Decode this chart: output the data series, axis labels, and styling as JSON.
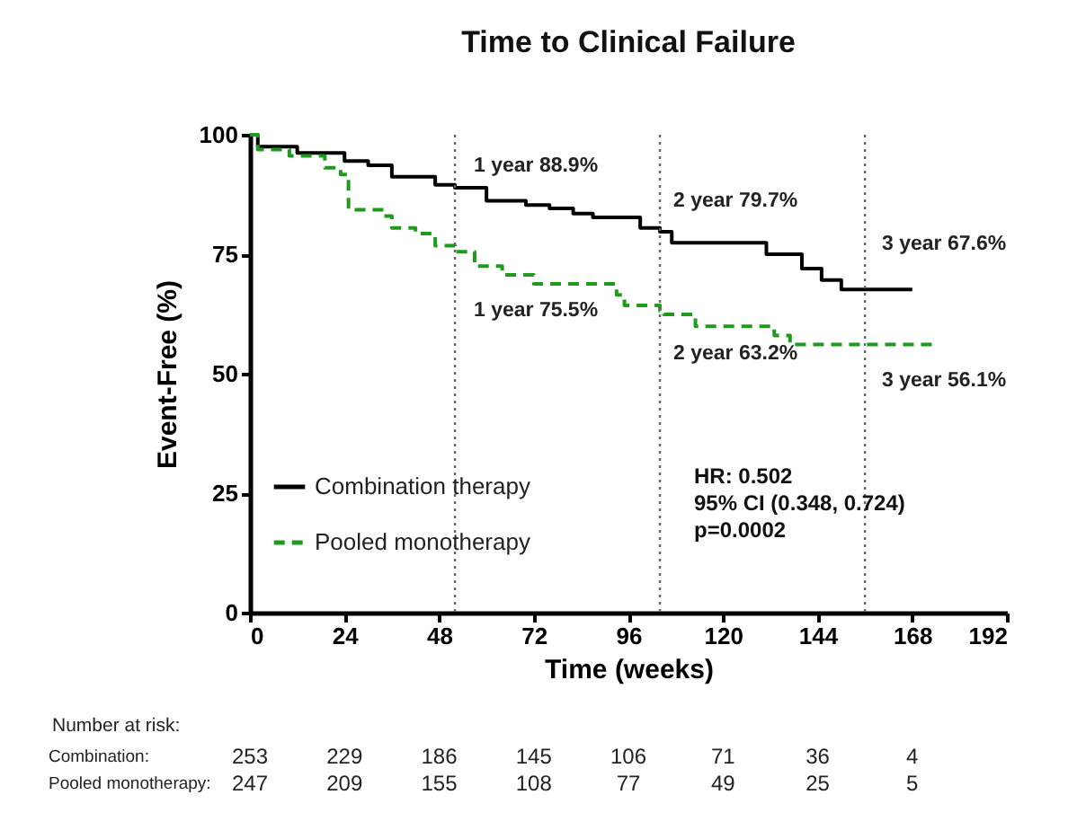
{
  "chart_data": {
    "type": "step",
    "title": "Time to Clinical Failure",
    "xlabel": "Time (weeks)",
    "ylabel": "Event-Free (%)",
    "xlim": [
      0,
      192
    ],
    "xticks": [
      0,
      24,
      48,
      72,
      96,
      120,
      144,
      168,
      192
    ],
    "ylim": [
      0,
      100
    ],
    "yticks": [
      0,
      25,
      50,
      75,
      100
    ],
    "grid": false,
    "legend": "bottom left",
    "marker": "none",
    "series": [
      {
        "name": "Combination therapy",
        "color": "#000000",
        "line_style": "solid",
        "x": [
          0,
          2,
          12,
          24,
          30,
          36,
          47,
          52,
          60,
          70,
          76,
          82,
          87,
          99,
          104,
          107,
          131,
          140,
          145,
          150,
          168
        ],
        "values": [
          100,
          97.5,
          96.2,
          94.5,
          93.6,
          91.2,
          89.5,
          88.9,
          86.2,
          85.3,
          84.6,
          83.5,
          82.7,
          80.5,
          79.7,
          77.4,
          75,
          72,
          69.6,
          67.6,
          67.6
        ]
      },
      {
        "name": "Pooled monotherapy",
        "color": "#1f9a1f",
        "line_style": "dashed",
        "x": [
          0,
          2,
          10,
          19,
          23,
          25,
          34,
          36,
          42,
          47,
          52,
          57,
          64,
          72,
          93,
          95,
          104,
          105,
          113,
          133,
          137,
          174
        ],
        "values": [
          100,
          96.9,
          95.6,
          93.1,
          91.7,
          84.3,
          83,
          80.5,
          79.3,
          76.8,
          75.5,
          72.5,
          70.7,
          68.8,
          66.5,
          64.3,
          63.2,
          62.4,
          59.9,
          58,
          56.1,
          56.1
        ]
      }
    ],
    "ref_lines": [
      {
        "axis": "x",
        "value": 52,
        "color": "#666666",
        "line_style": "dotted"
      },
      {
        "axis": "x",
        "value": 104,
        "color": "#666666",
        "line_style": "dotted"
      },
      {
        "axis": "x",
        "value": 156,
        "color": "#666666",
        "line_style": "dotted"
      }
    ],
    "annotations": [
      {
        "text": "1 year 88.9%",
        "x": 52,
        "y": 88.9
      },
      {
        "text": "1 year 75.5%",
        "x": 52,
        "y": 75.5
      },
      {
        "text": "2 year 79.7%",
        "x": 104,
        "y": 79.7
      },
      {
        "text": "2 year 63.2%",
        "x": 104,
        "y": 63.2
      },
      {
        "text": "3 year 67.6%",
        "x": 156,
        "y": 67.6
      },
      {
        "text": "3 year 56.1%",
        "x": 156,
        "y": 56.1
      },
      "HR: 0.502",
      "95% CI (0.348, 0.724)",
      "p=0.0002",
      "Number at risk:",
      "Combination: 253 229 186 145 106 71 36 4",
      "Pooled monotherapy: 247 209 155 108 77 49 25 5"
    ]
  }
}
